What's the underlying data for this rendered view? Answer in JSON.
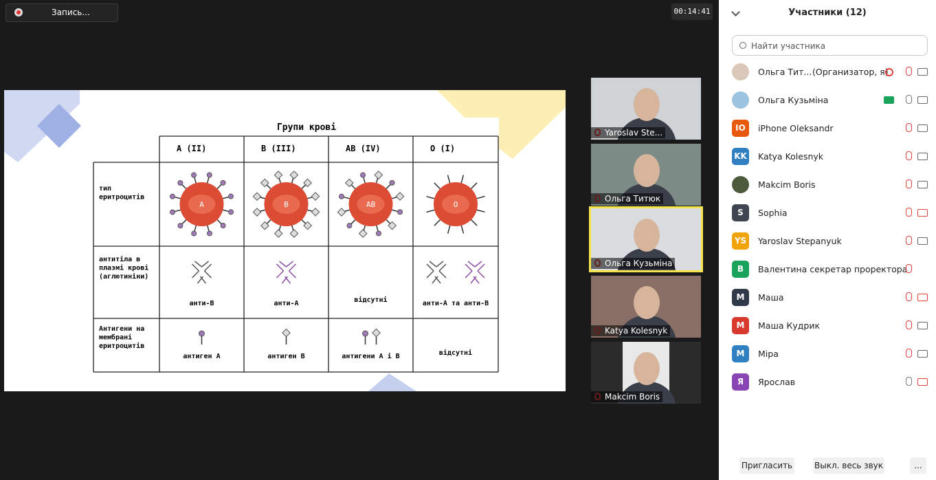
{
  "recording": "Запись...",
  "timer": "00:14:41",
  "slide": {
    "title": "Групи крові",
    "columns": [
      "A (II)",
      "B (III)",
      "AB (IV)",
      "O (I)"
    ],
    "row_labels": [
      [
        "тип",
        "еритроцитів"
      ],
      [
        "антитіла в",
        "плазмі крові",
        "(аглютиніни)"
      ],
      [
        "Антигени на",
        "мембрані",
        "еритроцитів"
      ]
    ],
    "cell_letters": [
      "A",
      "B",
      "AB",
      "O"
    ],
    "antibodies": [
      "анти-В",
      "анти-А",
      "відсутні",
      "анти-А та анти-В"
    ],
    "antigens": [
      "антиген А",
      "антиген В",
      "антигени А і В",
      "відсутні"
    ]
  },
  "tiles": [
    "Yaroslav Ste...",
    "Ольга Титюк",
    "Ольга Кузьміна",
    "Katya Kolesnyk",
    "Makcim Boris"
  ],
  "panel": {
    "title": "Участники (12)",
    "search": "Найти участника",
    "participants": [
      {
        "name": "Ольга Тит...",
        "role": "(Организатор, я)",
        "color": "#d9c7b8"
      },
      {
        "name": "Ольга Кузьміна",
        "color": "#9cc3e0"
      },
      {
        "name": "iPhone Oleksandr",
        "initials": "IO",
        "color": "#e8590c"
      },
      {
        "name": "Katya Kolesnyk",
        "initials": "KK",
        "color": "#2f7fc1"
      },
      {
        "name": "Makcim Boris",
        "color": "#4d5a3c"
      },
      {
        "name": "Sophia",
        "initials": "S",
        "color": "#3f4652"
      },
      {
        "name": "Yaroslav Stepanyuk",
        "initials": "YS",
        "color": "#f0a30a"
      },
      {
        "name": "Валентина секретар проректора",
        "initials": "B",
        "color": "#1aa35a"
      },
      {
        "name": "Маша",
        "initials": "M",
        "color": "#2f3947"
      },
      {
        "name": "Маша Кудрик",
        "initials": "M",
        "color": "#d9382e"
      },
      {
        "name": "Міра",
        "initials": "M",
        "color": "#2f7fc1"
      },
      {
        "name": "Ярослав",
        "initials": "Я",
        "color": "#8a45b5"
      }
    ],
    "buttons": [
      "Пригласить",
      "Выкл. весь звук",
      "..."
    ]
  }
}
